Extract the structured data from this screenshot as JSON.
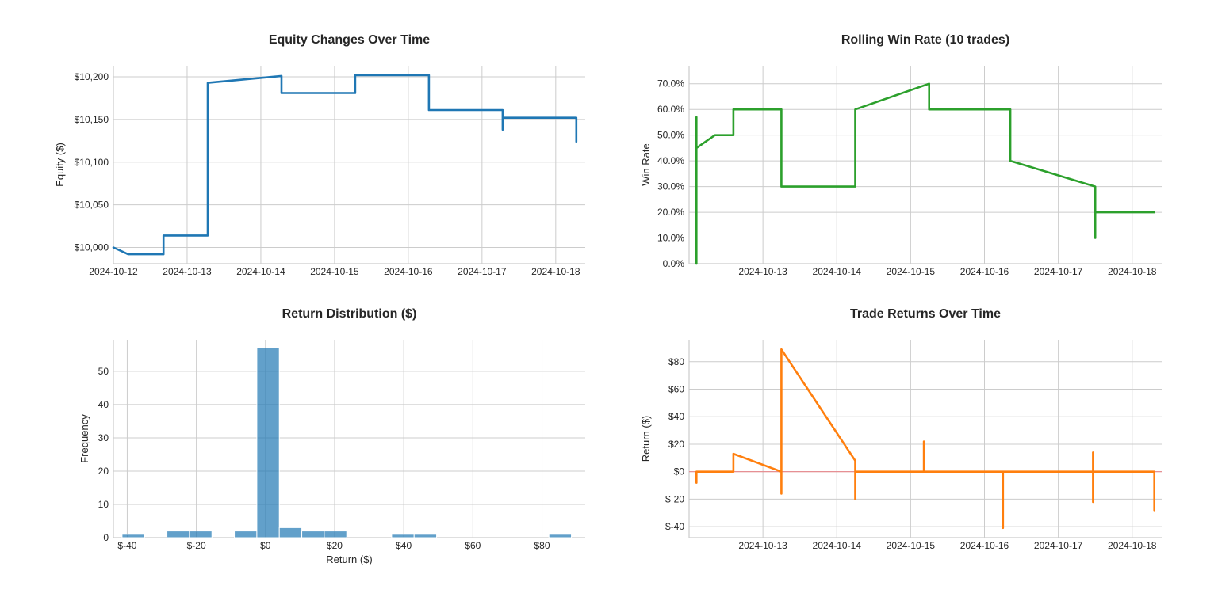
{
  "chart_data": [
    {
      "type": "line",
      "title": "Equity Changes Over Time",
      "xlabel": "",
      "ylabel": "Equity ($)",
      "x_ticks": [
        "2024-10-12",
        "2024-10-13",
        "2024-10-14",
        "2024-10-15",
        "2024-10-16",
        "2024-10-17",
        "2024-10-18"
      ],
      "y_ticks": [
        10000,
        10050,
        10100,
        10150,
        10200
      ],
      "y_tick_labels": [
        "$10,000",
        "$10,050",
        "$10,100",
        "$10,150",
        "$10,200"
      ],
      "xlim": [
        0,
        6.4
      ],
      "ylim": [
        9981,
        10213
      ],
      "grid": true,
      "color": "#1f77b4",
      "series": [
        {
          "x": [
            0.0,
            0.2,
            0.68,
            0.68,
            1.28,
            1.28,
            1.28,
            1.28,
            1.28,
            1.28,
            1.28,
            1.28,
            1.28,
            2.28,
            2.28,
            3.28,
            3.28,
            4.28,
            4.28,
            5.28,
            5.28,
            5.28,
            5.28,
            6.28,
            6.28
          ],
          "y": [
            10000,
            9992,
            9992,
            10014,
            10014,
            10030,
            10055,
            10030,
            10095,
            10105,
            10095,
            10192,
            10193,
            10201,
            10181,
            10181,
            10202,
            10202,
            10161,
            10161,
            10138,
            10160,
            10152,
            10152,
            10124
          ]
        }
      ]
    },
    {
      "type": "line",
      "title": "Rolling Win Rate (10 trades)",
      "xlabel": "",
      "ylabel": "Win Rate",
      "x_ticks": [
        "2024-10-13",
        "2024-10-14",
        "2024-10-15",
        "2024-10-16",
        "2024-10-17",
        "2024-10-18"
      ],
      "y_ticks": [
        0,
        0.1,
        0.2,
        0.3,
        0.4,
        0.5,
        0.6,
        0.7
      ],
      "y_tick_labels": [
        "0.0%",
        "10.0%",
        "20.0%",
        "30.0%",
        "40.0%",
        "50.0%",
        "60.0%",
        "70.0%"
      ],
      "xlim": [
        0,
        6.4
      ],
      "ylim": [
        0,
        0.77
      ],
      "grid": true,
      "color": "#2ca02c",
      "series": [
        {
          "x": [
            0.1,
            0.1,
            0.1,
            0.1,
            0.1,
            0.1,
            0.35,
            0.6,
            0.6,
            1.25,
            1.25,
            1.25,
            1.25,
            2.25,
            2.25,
            2.25,
            2.25,
            3.25,
            3.25,
            4.35,
            4.35,
            5.5,
            5.5,
            5.5,
            5.5,
            6.3
          ],
          "y": [
            0,
            0.57,
            0.3,
            0.5,
            0.45,
            0.45,
            0.5,
            0.5,
            0.6,
            0.6,
            0.3,
            0.6,
            0.3,
            0.3,
            0.5,
            0.4,
            0.6,
            0.7,
            0.6,
            0.6,
            0.4,
            0.3,
            0.1,
            0.2,
            0.2,
            0.2
          ]
        }
      ]
    },
    {
      "type": "bar",
      "title": "Return Distribution ($)",
      "xlabel": "Return ($)",
      "ylabel": "Frequency",
      "x_ticks": [
        -40,
        -20,
        0,
        20,
        40,
        60,
        80
      ],
      "x_tick_labels": [
        "$-40",
        "$-20",
        "$0",
        "$20",
        "$40",
        "$60",
        "$80"
      ],
      "y_ticks": [
        0,
        10,
        20,
        30,
        40,
        50
      ],
      "y_tick_labels": [
        "0",
        "10",
        "20",
        "30",
        "40",
        "50"
      ],
      "xlim": [
        -44,
        92.5
      ],
      "ylim": [
        0,
        59.5
      ],
      "grid": true,
      "color": "#1f77b4",
      "bin_width": 6.5,
      "bin_edges_start": [
        -41.5,
        -28.5,
        -22,
        -9,
        -2.5,
        4,
        10.5,
        17,
        36.5,
        43,
        82
      ],
      "values": [
        1,
        2,
        2,
        2,
        57,
        3,
        2,
        2,
        1,
        1,
        1
      ]
    },
    {
      "type": "line",
      "title": "Trade Returns Over Time",
      "xlabel": "",
      "ylabel": "Return ($)",
      "x_ticks": [
        "2024-10-13",
        "2024-10-14",
        "2024-10-15",
        "2024-10-16",
        "2024-10-17",
        "2024-10-18"
      ],
      "y_ticks": [
        -40,
        -20,
        0,
        20,
        40,
        60,
        80
      ],
      "y_tick_labels": [
        "$-40",
        "$-20",
        "$0",
        "$20",
        "$40",
        "$60",
        "$80"
      ],
      "xlim": [
        0,
        6.4
      ],
      "ylim": [
        -48,
        96
      ],
      "grid": true,
      "color": "#ff7f0e",
      "zero_line_color": "#e8868a",
      "series": [
        {
          "x": [
            0.1,
            0.1,
            0.1,
            0.1,
            0.6,
            0.6,
            1.25,
            1.25,
            1.25,
            1.25,
            1.25,
            1.25,
            2.25,
            2.25,
            2.25,
            2.25,
            3.18,
            3.18,
            3.18,
            4.25,
            4.25,
            4.25,
            5.47,
            5.47,
            5.47,
            5.47,
            6.3,
            6.3
          ],
          "y": [
            0,
            -8,
            0,
            0,
            0,
            13,
            0,
            48,
            -16,
            0,
            89,
            89,
            8,
            -20,
            0,
            0,
            0,
            22,
            0,
            0,
            -41,
            0,
            0,
            14,
            -22,
            0,
            0,
            -28
          ]
        }
      ]
    }
  ]
}
